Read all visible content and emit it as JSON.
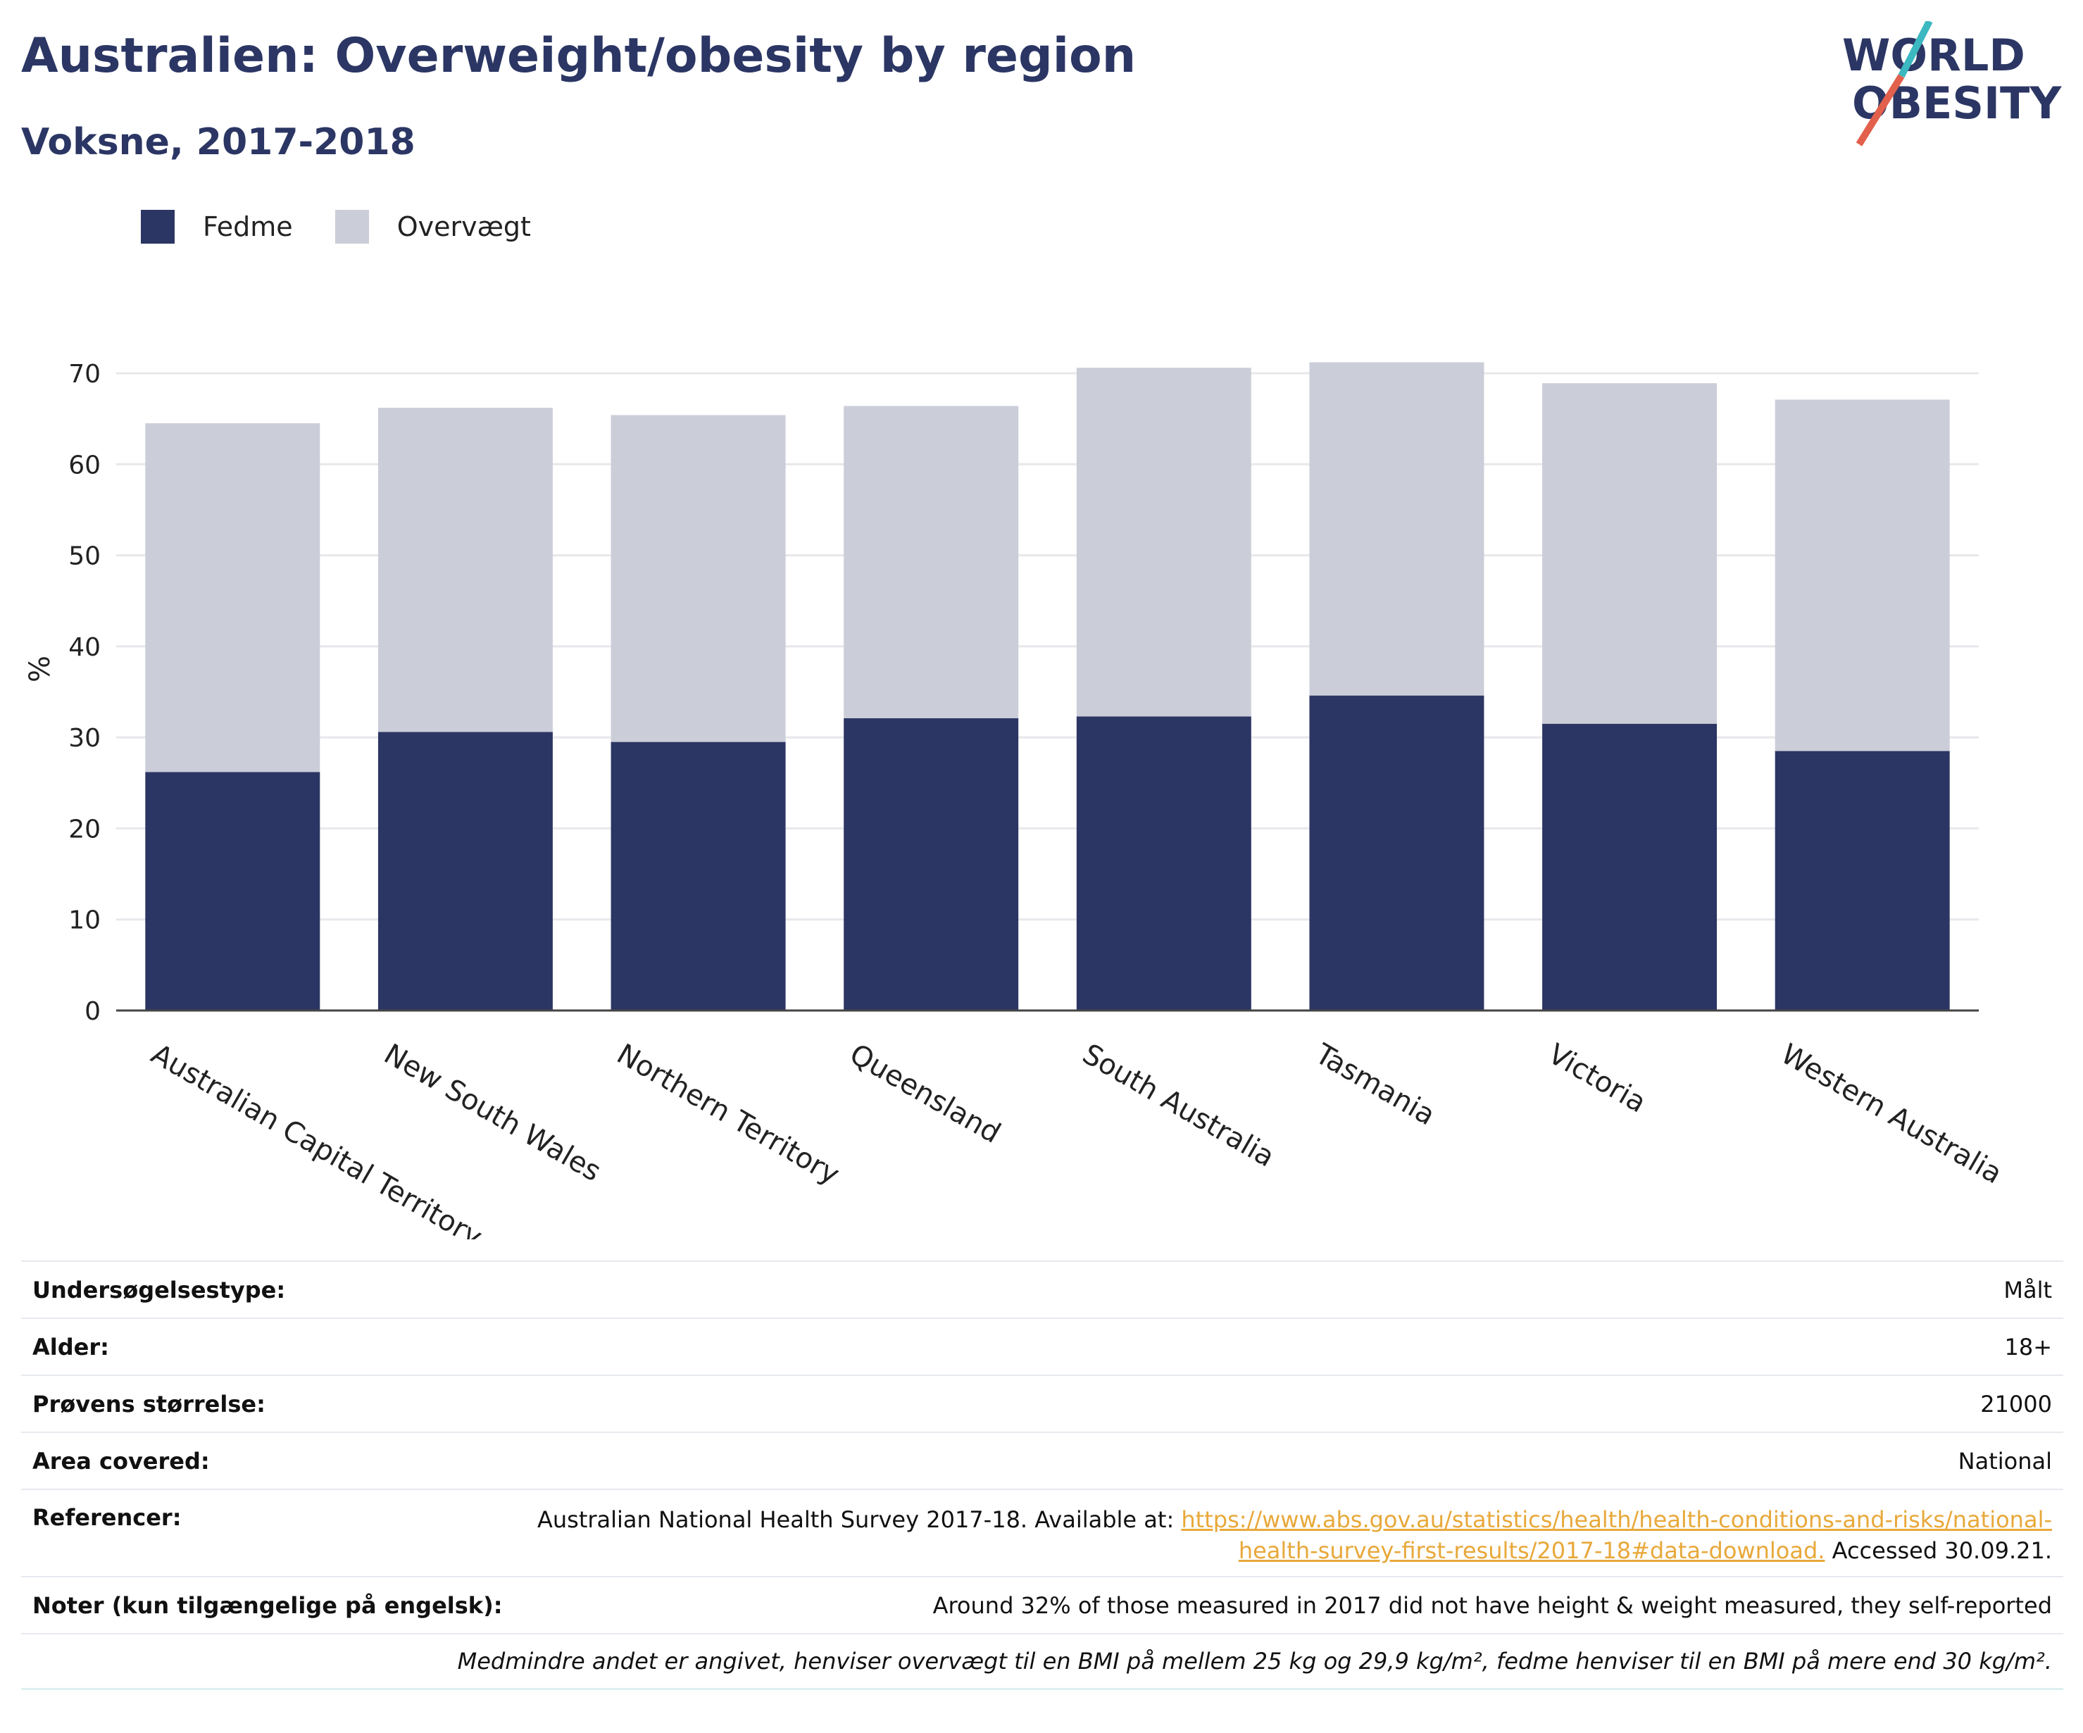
{
  "title": "Australien: Overweight/obesity by region",
  "subtitle": "Voksne, 2017-2018",
  "logo": {
    "line1": "WORLD",
    "line2": "OBESITY"
  },
  "colors": {
    "fedme": "#2b3664",
    "overvaegt": "#cbcdd8",
    "accent": "#e8a83a",
    "logo_red": "#e2604c",
    "logo_teal": "#3cb8c0"
  },
  "chart_data": {
    "type": "bar",
    "stacked": true,
    "ylabel": "%",
    "ylim": [
      0,
      70
    ],
    "yticks": [
      0,
      10,
      20,
      30,
      40,
      50,
      60,
      70
    ],
    "grid": true,
    "legend_position": "top-left",
    "categories": [
      "Australian Capital Territory",
      "New South Wales",
      "Northern Territory",
      "Queensland",
      "South Australia",
      "Tasmania",
      "Victoria",
      "Western Australia"
    ],
    "series": [
      {
        "name": "Fedme",
        "values": [
          26.2,
          30.6,
          29.5,
          32.1,
          32.3,
          34.6,
          31.5,
          28.5
        ]
      },
      {
        "name": "Overvægt",
        "values": [
          38.3,
          35.6,
          35.9,
          34.3,
          38.3,
          36.6,
          37.4,
          38.6
        ]
      }
    ]
  },
  "info": {
    "survey_type": {
      "label": "Undersøgelsestype:",
      "value": "Målt"
    },
    "age": {
      "label": "Alder:",
      "value": "18+"
    },
    "sample_size": {
      "label": "Prøvens størrelse:",
      "value": "21000"
    },
    "area": {
      "label": "Area covered:",
      "value": "National"
    },
    "references": {
      "label": "Referencer:",
      "text_before": "Australian National Health Survey 2017-18. Available at: ",
      "link": "https://www.abs.gov.au/statistics/health/health-conditions-and-risks/national-health-survey-first-results/2017-18#data-download.",
      "text_after": " Accessed 30.09.21."
    },
    "notes": {
      "label": "Noter (kun tilgængelige på engelsk):",
      "value": "Around 32% of those measured in 2017 did not have height & weight measured, they self-reported"
    },
    "definition": "Medmindre andet er angivet, henviser overvægt til en BMI på mellem 25 kg og 29,9 kg/m², fedme henviser til en BMI på mere end 30 kg/m²."
  }
}
